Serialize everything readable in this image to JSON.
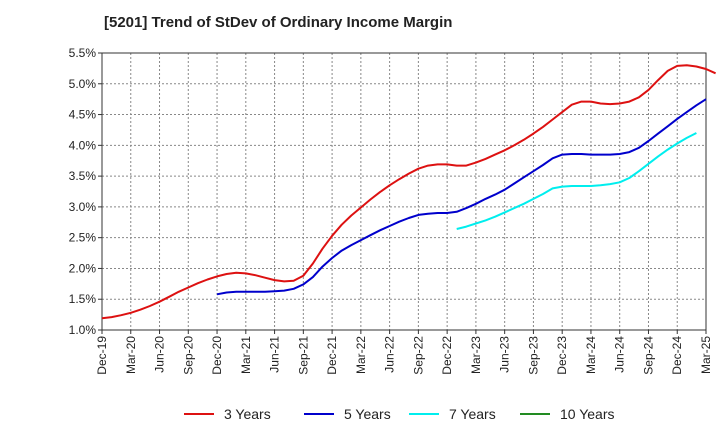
{
  "chart_data": {
    "type": "line",
    "title": "[5201]  Trend of StDev of Ordinary Income Margin",
    "xlabel": "",
    "ylabel": "",
    "ylim": [
      1.0,
      5.5
    ],
    "yticks": [
      "1.0%",
      "1.5%",
      "2.0%",
      "2.5%",
      "3.0%",
      "3.5%",
      "4.0%",
      "4.5%",
      "5.0%",
      "5.5%"
    ],
    "ytick_values": [
      1.0,
      1.5,
      2.0,
      2.5,
      3.0,
      3.5,
      4.0,
      4.5,
      5.0,
      5.5
    ],
    "xticks": [
      "Dec-19",
      "Mar-20",
      "Jun-20",
      "Sep-20",
      "Dec-20",
      "Mar-21",
      "Jun-21",
      "Sep-21",
      "Dec-21",
      "Mar-22",
      "Jun-22",
      "Sep-22",
      "Dec-22",
      "Mar-23",
      "Jun-23",
      "Sep-23",
      "Dec-23",
      "Mar-24",
      "Jun-24",
      "Sep-24",
      "Dec-24",
      "Mar-25"
    ],
    "grid": true,
    "legend": "bottom",
    "series": [
      {
        "name": "3 Years",
        "color": "#dd1111",
        "points": [
          [
            "Dec-19",
            1.19
          ],
          [
            "Jan-20",
            1.21
          ],
          [
            "Feb-20",
            1.24
          ],
          [
            "Mar-20",
            1.28
          ],
          [
            "Apr-20",
            1.33
          ],
          [
            "May-20",
            1.39
          ],
          [
            "Jun-20",
            1.46
          ],
          [
            "Jul-20",
            1.54
          ],
          [
            "Aug-20",
            1.62
          ],
          [
            "Sep-20",
            1.69
          ],
          [
            "Oct-20",
            1.76
          ],
          [
            "Nov-20",
            1.82
          ],
          [
            "Dec-20",
            1.87
          ],
          [
            "Jan-21",
            1.91
          ],
          [
            "Feb-21",
            1.93
          ],
          [
            "Mar-21",
            1.92
          ],
          [
            "Apr-21",
            1.89
          ],
          [
            "May-21",
            1.85
          ],
          [
            "Jun-21",
            1.81
          ],
          [
            "Jul-21",
            1.79
          ],
          [
            "Aug-21",
            1.8
          ],
          [
            "Sep-21",
            1.88
          ],
          [
            "Oct-21",
            2.08
          ],
          [
            "Nov-21",
            2.32
          ],
          [
            "Dec-21",
            2.53
          ],
          [
            "Jan-22",
            2.71
          ],
          [
            "Feb-22",
            2.86
          ],
          [
            "Mar-22",
            2.99
          ],
          [
            "Apr-22",
            3.12
          ],
          [
            "May-22",
            3.24
          ],
          [
            "Jun-22",
            3.35
          ],
          [
            "Jul-22",
            3.45
          ],
          [
            "Aug-22",
            3.54
          ],
          [
            "Sep-22",
            3.62
          ],
          [
            "Oct-22",
            3.67
          ],
          [
            "Nov-22",
            3.69
          ],
          [
            "Dec-22",
            3.69
          ],
          [
            "Jan-23",
            3.67
          ],
          [
            "Feb-23",
            3.67
          ],
          [
            "Mar-23",
            3.72
          ],
          [
            "Apr-23",
            3.78
          ],
          [
            "May-23",
            3.85
          ],
          [
            "Jun-23",
            3.92
          ],
          [
            "Jul-23",
            4.0
          ],
          [
            "Aug-23",
            4.09
          ],
          [
            "Sep-23",
            4.19
          ],
          [
            "Oct-23",
            4.3
          ],
          [
            "Nov-23",
            4.42
          ],
          [
            "Dec-23",
            4.54
          ],
          [
            "Jan-24",
            4.66
          ],
          [
            "Feb-24",
            4.71
          ],
          [
            "Mar-24",
            4.71
          ],
          [
            "Apr-24",
            4.68
          ],
          [
            "May-24",
            4.67
          ],
          [
            "Jun-24",
            4.68
          ],
          [
            "Jul-24",
            4.71
          ],
          [
            "Aug-24",
            4.78
          ],
          [
            "Sep-24",
            4.9
          ],
          [
            "Oct-24",
            5.06
          ],
          [
            "Nov-24",
            5.21
          ],
          [
            "Dec-24",
            5.29
          ],
          [
            "Jan-25",
            5.3
          ],
          [
            "Feb-25",
            5.28
          ],
          [
            "Mar-25",
            5.24
          ],
          [
            "Apr-25",
            5.17
          ]
        ]
      },
      {
        "name": "5 Years",
        "color": "#0000cc",
        "points": [
          [
            "Dec-20",
            1.58
          ],
          [
            "Jan-21",
            1.61
          ],
          [
            "Feb-21",
            1.62
          ],
          [
            "Mar-21",
            1.62
          ],
          [
            "Apr-21",
            1.62
          ],
          [
            "May-21",
            1.62
          ],
          [
            "Jun-21",
            1.63
          ],
          [
            "Jul-21",
            1.64
          ],
          [
            "Aug-21",
            1.67
          ],
          [
            "Sep-21",
            1.74
          ],
          [
            "Oct-21",
            1.86
          ],
          [
            "Nov-21",
            2.03
          ],
          [
            "Dec-21",
            2.17
          ],
          [
            "Jan-22",
            2.29
          ],
          [
            "Feb-22",
            2.38
          ],
          [
            "Mar-22",
            2.46
          ],
          [
            "Apr-22",
            2.54
          ],
          [
            "May-22",
            2.62
          ],
          [
            "Jun-22",
            2.69
          ],
          [
            "Jul-22",
            2.76
          ],
          [
            "Aug-22",
            2.82
          ],
          [
            "Sep-22",
            2.87
          ],
          [
            "Oct-22",
            2.89
          ],
          [
            "Nov-22",
            2.9
          ],
          [
            "Dec-22",
            2.9
          ],
          [
            "Jan-23",
            2.92
          ],
          [
            "Feb-23",
            2.98
          ],
          [
            "Mar-23",
            3.05
          ],
          [
            "Apr-23",
            3.13
          ],
          [
            "May-23",
            3.2
          ],
          [
            "Jun-23",
            3.28
          ],
          [
            "Jul-23",
            3.38
          ],
          [
            "Aug-23",
            3.48
          ],
          [
            "Sep-23",
            3.58
          ],
          [
            "Oct-23",
            3.68
          ],
          [
            "Nov-23",
            3.79
          ],
          [
            "Dec-23",
            3.85
          ],
          [
            "Jan-24",
            3.86
          ],
          [
            "Feb-24",
            3.86
          ],
          [
            "Mar-24",
            3.85
          ],
          [
            "Apr-24",
            3.85
          ],
          [
            "May-24",
            3.85
          ],
          [
            "Jun-24",
            3.86
          ],
          [
            "Jul-24",
            3.89
          ],
          [
            "Aug-24",
            3.96
          ],
          [
            "Sep-24",
            4.07
          ],
          [
            "Oct-24",
            4.19
          ],
          [
            "Nov-24",
            4.31
          ],
          [
            "Dec-24",
            4.43
          ],
          [
            "Jan-25",
            4.54
          ],
          [
            "Feb-25",
            4.65
          ],
          [
            "Mar-25",
            4.75
          ]
        ]
      },
      {
        "name": "7 Years",
        "color": "#00eeee",
        "points": [
          [
            "Jan-23",
            2.64
          ],
          [
            "Feb-23",
            2.68
          ],
          [
            "Mar-23",
            2.73
          ],
          [
            "Apr-23",
            2.78
          ],
          [
            "May-23",
            2.84
          ],
          [
            "Jun-23",
            2.91
          ],
          [
            "Jul-23",
            2.98
          ],
          [
            "Aug-23",
            3.05
          ],
          [
            "Sep-23",
            3.13
          ],
          [
            "Oct-23",
            3.21
          ],
          [
            "Nov-23",
            3.3
          ],
          [
            "Dec-23",
            3.33
          ],
          [
            "Jan-24",
            3.34
          ],
          [
            "Feb-24",
            3.34
          ],
          [
            "Mar-24",
            3.34
          ],
          [
            "Apr-24",
            3.35
          ],
          [
            "May-24",
            3.37
          ],
          [
            "Jun-24",
            3.4
          ],
          [
            "Jul-24",
            3.47
          ],
          [
            "Aug-24",
            3.58
          ],
          [
            "Sep-24",
            3.7
          ],
          [
            "Oct-24",
            3.82
          ],
          [
            "Nov-24",
            3.93
          ],
          [
            "Dec-24",
            4.03
          ],
          [
            "Jan-25",
            4.12
          ],
          [
            "Feb-25",
            4.2
          ]
        ]
      },
      {
        "name": "10 Years",
        "color": "#228b22",
        "points": []
      }
    ]
  }
}
